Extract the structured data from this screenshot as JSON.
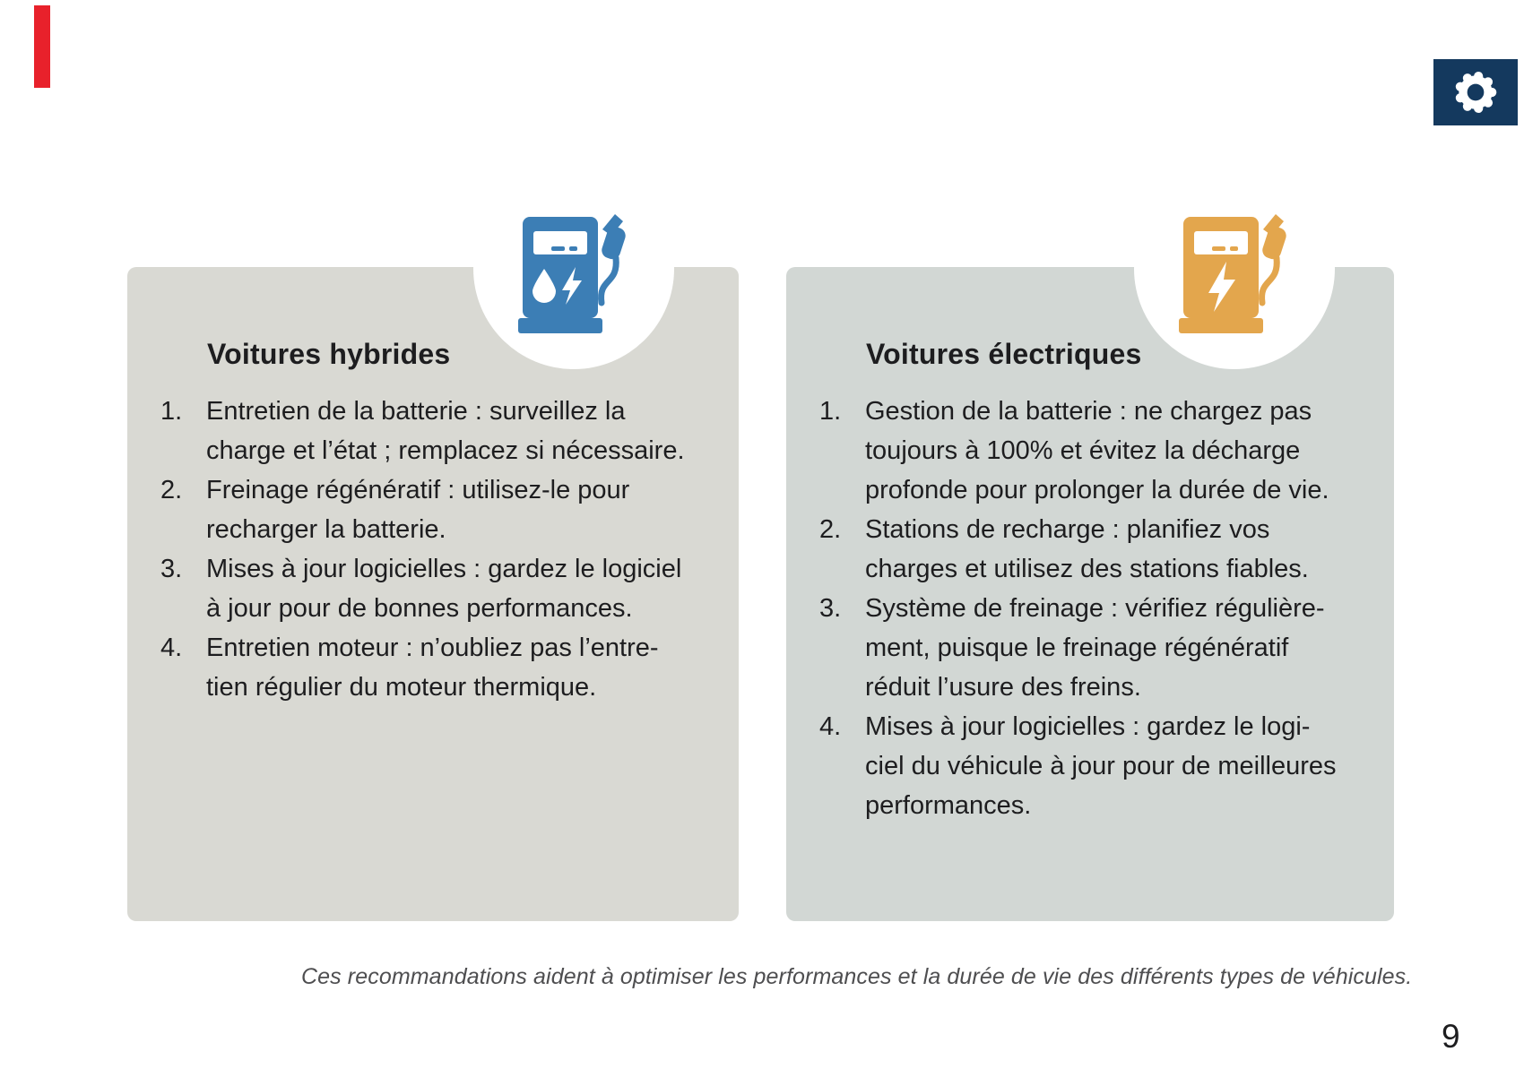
{
  "colors": {
    "accent_red": "#e8212b",
    "navy": "#14395e",
    "blue": "#3c7eb5",
    "orange": "#e3a64d",
    "card_left_bg": "#d9d9d3",
    "card_right_bg": "#d2d7d4",
    "text_dark": "#1d1d1f",
    "footer_gray": "#4e4e50"
  },
  "cards": [
    {
      "title": "Voitures hybrides",
      "icon": "fuel-pump-hybrid-icon",
      "items": [
        "Entretien de la batterie : surveillez la\ncharge et l’état ; remplacez si nécessaire.",
        "Freinage régénératif : utilisez-le pour\nrecharger la batterie.",
        "Mises à jour logicielles : gardez le logiciel\nà jour pour de bonnes performances.",
        "Entretien moteur : n’oubliez pas l’entre-\ntien régulier du moteur thermique."
      ]
    },
    {
      "title": "Voitures électriques",
      "icon": "fuel-pump-electric-icon",
      "items": [
        "Gestion de la batterie : ne chargez pas\ntoujours à 100% et évitez la décharge\nprofonde pour prolonger la durée de vie.",
        "Stations de recharge : planifiez vos\ncharges et utilisez des stations fiables.",
        "Système de freinage : vérifiez régulière-\nment, puisque le freinage régénératif\nréduit l’usure des freins.",
        "Mises à jour logicielles : gardez le logi-\nciel du véhicule à jour pour de meilleures\nperformances."
      ]
    }
  ],
  "footer": {
    "note": "Ces recommandations aident à optimiser les performances et la durée de vie des différents types de véhicules."
  },
  "page": {
    "number": "9"
  }
}
